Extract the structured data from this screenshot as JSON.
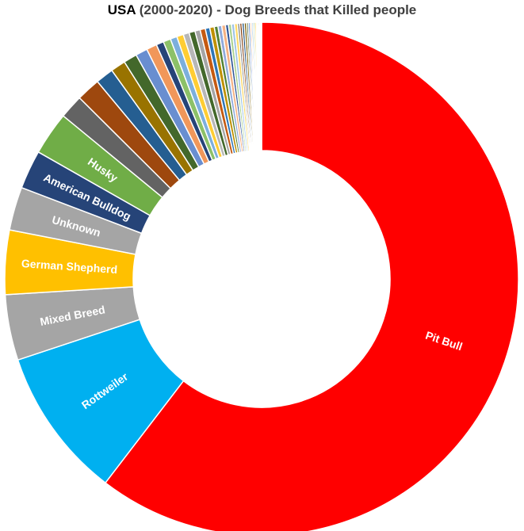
{
  "chart_data": {
    "type": "pie",
    "variant": "donut",
    "title": "USA (2000-2020) - Dog Breeds that Killed people",
    "title_parts": [
      "USA",
      " (2000-2020) - Dog Breeds that Killed people"
    ],
    "legend": "none",
    "slices": [
      {
        "label": "Pit Bull",
        "value": 64.3,
        "color": "#FF0000",
        "labeled": true
      },
      {
        "label": "Rottweiler",
        "value": 10.1,
        "color": "#00B0F0",
        "labeled": true
      },
      {
        "label": "Mixed Breed",
        "value": 4.4,
        "color": "#A5A5A5",
        "labeled": true
      },
      {
        "label": "German Shepherd",
        "value": 4.3,
        "color": "#FFC000",
        "labeled": true
      },
      {
        "label": "Unknown",
        "value": 2.9,
        "color": "#A5A5A5",
        "labeled": true
      },
      {
        "label": "American Bulldog",
        "value": 2.6,
        "color": "#264478",
        "labeled": true
      },
      {
        "label": "Husky",
        "value": 2.9,
        "color": "#70AD47",
        "labeled": true
      },
      {
        "label": "",
        "value": 1.6,
        "color": "#636363",
        "labeled": false
      },
      {
        "label": "",
        "value": 1.6,
        "color": "#9E480E",
        "labeled": false
      },
      {
        "label": "",
        "value": 1.2,
        "color": "#255E91",
        "labeled": false
      },
      {
        "label": "",
        "value": 1.0,
        "color": "#997300",
        "labeled": false
      },
      {
        "label": "",
        "value": 0.9,
        "color": "#43682B",
        "labeled": false
      },
      {
        "label": "",
        "value": 0.8,
        "color": "#698ED0",
        "labeled": false
      },
      {
        "label": "",
        "value": 0.7,
        "color": "#F1975A",
        "labeled": false
      },
      {
        "label": "",
        "value": 0.5,
        "color": "#264478",
        "labeled": false
      },
      {
        "label": "",
        "value": 0.5,
        "color": "#8CC168",
        "labeled": false
      },
      {
        "label": "",
        "value": 0.45,
        "color": "#7CAFDD",
        "labeled": false
      },
      {
        "label": "",
        "value": 0.45,
        "color": "#FFCD33",
        "labeled": false
      },
      {
        "label": "",
        "value": 0.4,
        "color": "#B7B7B7",
        "labeled": false
      },
      {
        "label": "",
        "value": 0.4,
        "color": "#43682B",
        "labeled": false
      },
      {
        "label": "",
        "value": 0.35,
        "color": "#A5A5A5",
        "labeled": false
      },
      {
        "label": "",
        "value": 0.35,
        "color": "#C55A11",
        "labeled": false
      },
      {
        "label": "",
        "value": 0.3,
        "color": "#2E75B6",
        "labeled": false
      },
      {
        "label": "",
        "value": 0.3,
        "color": "#BF9000",
        "labeled": false
      },
      {
        "label": "",
        "value": 0.25,
        "color": "#548235",
        "labeled": false
      },
      {
        "label": "",
        "value": 0.25,
        "color": "#8FAADC",
        "labeled": false
      },
      {
        "label": "",
        "value": 0.25,
        "color": "#F4B183",
        "labeled": false
      },
      {
        "label": "",
        "value": 0.2,
        "color": "#2F5597",
        "labeled": false
      },
      {
        "label": "",
        "value": 0.2,
        "color": "#A9D18E",
        "labeled": false
      },
      {
        "label": "",
        "value": 0.2,
        "color": "#9DC3E6",
        "labeled": false
      },
      {
        "label": "",
        "value": 0.2,
        "color": "#FFD966",
        "labeled": false
      },
      {
        "label": "",
        "value": 0.15,
        "color": "#7F7F7F",
        "labeled": false
      },
      {
        "label": "",
        "value": 0.15,
        "color": "#843C0C",
        "labeled": false
      },
      {
        "label": "",
        "value": 0.15,
        "color": "#1F4E79",
        "labeled": false
      },
      {
        "label": "",
        "value": 0.15,
        "color": "#7F6000",
        "labeled": false
      },
      {
        "label": "",
        "value": 0.12,
        "color": "#385723",
        "labeled": false
      },
      {
        "label": "",
        "value": 0.12,
        "color": "#4472C4",
        "labeled": false
      },
      {
        "label": "",
        "value": 0.1,
        "color": "#ED7D31",
        "labeled": false
      },
      {
        "label": "",
        "value": 0.1,
        "color": "#5B9BD5",
        "labeled": false
      },
      {
        "label": "",
        "value": 0.1,
        "color": "#70AD47",
        "labeled": false
      },
      {
        "label": "",
        "value": 0.1,
        "color": "#FFC000",
        "labeled": false
      },
      {
        "label": "",
        "value": 0.08,
        "color": "#A5A5A5",
        "labeled": false
      },
      {
        "label": "",
        "value": 0.08,
        "color": "#264478",
        "labeled": false
      },
      {
        "label": "",
        "value": 0.08,
        "color": "#9E480E",
        "labeled": false
      },
      {
        "label": "",
        "value": 0.06,
        "color": "#636363",
        "labeled": false
      },
      {
        "label": "",
        "value": 0.06,
        "color": "#997300",
        "labeled": false
      }
    ]
  }
}
